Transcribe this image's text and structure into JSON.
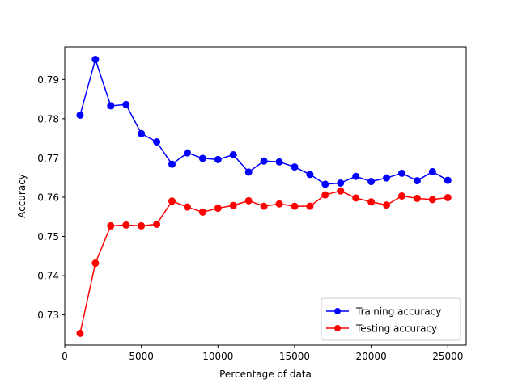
{
  "chart_data": {
    "type": "line",
    "title": "",
    "xlabel": "Percentage of data",
    "ylabel": "Accuracy",
    "xlim": [
      0,
      26200
    ],
    "ylim": [
      0.7223,
      0.7983
    ],
    "xticks": [
      0,
      5000,
      10000,
      15000,
      20000,
      25000
    ],
    "yticks": [
      0.73,
      0.74,
      0.75,
      0.76,
      0.77,
      0.78,
      0.79
    ],
    "grid": false,
    "legend_position": "bottom-right",
    "x": [
      1000,
      2000,
      3000,
      4000,
      5000,
      6000,
      7000,
      8000,
      9000,
      10000,
      11000,
      12000,
      13000,
      14000,
      15000,
      16000,
      17000,
      18000,
      19000,
      20000,
      21000,
      22000,
      23000,
      24000,
      25000
    ],
    "series": [
      {
        "name": "Training accuracy",
        "color": "#0000ff",
        "values": [
          0.7809,
          0.7951,
          0.7833,
          0.7836,
          0.7762,
          0.7741,
          0.7684,
          0.7713,
          0.7699,
          0.7696,
          0.7708,
          0.7664,
          0.7692,
          0.769,
          0.7677,
          0.7658,
          0.7633,
          0.7636,
          0.7653,
          0.764,
          0.7649,
          0.7661,
          0.7642,
          0.7665,
          0.7643
        ]
      },
      {
        "name": "Testing accuracy",
        "color": "#ff0000",
        "values": [
          0.7253,
          0.7432,
          0.7527,
          0.7529,
          0.7527,
          0.7531,
          0.759,
          0.7575,
          0.7562,
          0.7572,
          0.7579,
          0.7591,
          0.7577,
          0.7583,
          0.7577,
          0.7577,
          0.7606,
          0.7616,
          0.7598,
          0.7588,
          0.758,
          0.7603,
          0.7597,
          0.7594,
          0.7599
        ]
      }
    ]
  }
}
